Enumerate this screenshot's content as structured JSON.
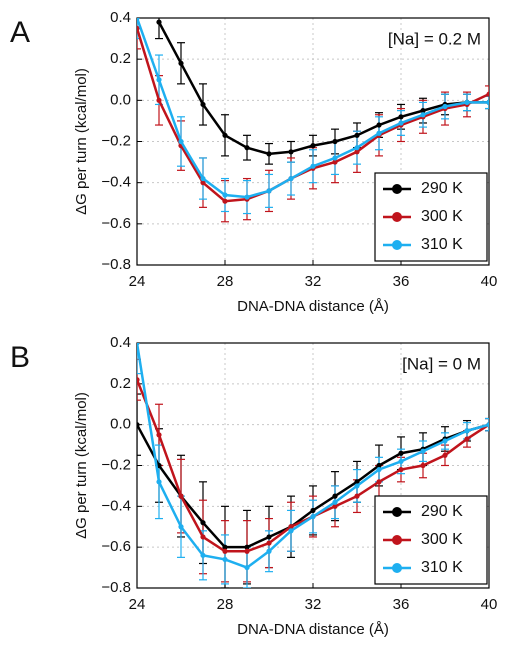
{
  "chart_data": [
    {
      "type": "line",
      "panel_label": "A",
      "annotation": "[Na] = 0.2 M",
      "xlabel": "DNA-DNA distance (Å)",
      "ylabel": "ΔG per turn (kcal/mol)",
      "x": [
        24,
        25,
        26,
        27,
        28,
        29,
        30,
        31,
        32,
        33,
        34,
        35,
        36,
        37,
        38,
        39,
        40
      ],
      "xlim": [
        24,
        40
      ],
      "xticks": [
        24,
        28,
        32,
        36,
        40
      ],
      "ylim": [
        -0.8,
        0.4
      ],
      "yticks": [
        0.4,
        0.2,
        {
          "value": 0,
          "label": "0.0"
        },
        {
          "value": -0.2,
          "label": "−0.2"
        },
        {
          "value": -0.4,
          "label": "−0.4"
        },
        {
          "value": -0.6,
          "label": "−0.6"
        },
        {
          "value": -0.8,
          "label": "−0.8"
        }
      ],
      "grid": true,
      "legend": "lower right",
      "series": [
        {
          "name": "290 K",
          "color": "#000000",
          "values": [
            null,
            0.38,
            0.18,
            -0.02,
            -0.17,
            -0.23,
            -0.26,
            -0.25,
            -0.22,
            -0.2,
            -0.17,
            -0.12,
            -0.08,
            -0.05,
            -0.02,
            -0.01,
            -0.01
          ],
          "errors": [
            null,
            0.08,
            0.1,
            0.1,
            0.1,
            0.06,
            0.05,
            0.05,
            0.05,
            0.06,
            0.06,
            0.06,
            0.06,
            0.06,
            0.05,
            0.04,
            0.03
          ]
        },
        {
          "name": "300 K",
          "color": "#c0141c",
          "values": [
            0.35,
            0.0,
            -0.22,
            -0.4,
            -0.49,
            -0.48,
            -0.44,
            -0.38,
            -0.33,
            -0.3,
            -0.25,
            -0.17,
            -0.12,
            -0.08,
            -0.04,
            -0.02,
            0.03
          ],
          "errors": [
            0.1,
            0.12,
            0.12,
            0.12,
            0.1,
            0.1,
            0.1,
            0.1,
            0.1,
            0.1,
            0.1,
            0.1,
            0.08,
            0.08,
            0.08,
            0.06,
            0.04
          ]
        },
        {
          "name": "310 K",
          "color": "#1eaff0",
          "values": [
            0.4,
            0.1,
            -0.2,
            -0.38,
            -0.46,
            -0.47,
            -0.44,
            -0.38,
            -0.32,
            -0.28,
            -0.23,
            -0.16,
            -0.11,
            -0.07,
            -0.03,
            -0.01,
            -0.01
          ],
          "errors": [
            0.1,
            0.12,
            0.12,
            0.1,
            0.08,
            0.08,
            0.08,
            0.08,
            0.08,
            0.08,
            0.08,
            0.08,
            0.06,
            0.06,
            0.06,
            0.04,
            0.03
          ]
        }
      ]
    },
    {
      "type": "line",
      "panel_label": "B",
      "annotation": "[Na] = 0 M",
      "xlabel": "DNA-DNA distance (Å)",
      "ylabel": "ΔG per turn (kcal/mol)",
      "x": [
        24,
        25,
        26,
        27,
        28,
        29,
        30,
        31,
        32,
        33,
        34,
        35,
        36,
        37,
        38,
        39,
        40
      ],
      "xlim": [
        24,
        40
      ],
      "xticks": [
        24,
        28,
        32,
        36,
        40
      ],
      "ylim": [
        -0.8,
        0.4
      ],
      "yticks": [
        0.4,
        0.2,
        {
          "value": 0,
          "label": "0.0"
        },
        {
          "value": -0.2,
          "label": "−0.2"
        },
        {
          "value": -0.4,
          "label": "−0.4"
        },
        {
          "value": -0.6,
          "label": "−0.6"
        },
        {
          "value": -0.8,
          "label": "−0.8"
        }
      ],
      "grid": true,
      "legend": "lower right",
      "series": [
        {
          "name": "290 K",
          "color": "#000000",
          "values": [
            0.0,
            -0.2,
            -0.35,
            -0.48,
            -0.6,
            -0.6,
            -0.55,
            -0.5,
            -0.42,
            -0.35,
            -0.28,
            -0.2,
            -0.14,
            -0.12,
            -0.07,
            -0.03,
            0.0
          ],
          "errors": [
            0.15,
            0.18,
            0.2,
            0.2,
            0.2,
            0.18,
            0.15,
            0.15,
            0.12,
            0.12,
            0.1,
            0.1,
            0.08,
            0.08,
            0.06,
            0.05,
            0.03
          ]
        },
        {
          "name": "300 K",
          "color": "#c0141c",
          "values": [
            0.22,
            -0.05,
            -0.35,
            -0.55,
            -0.62,
            -0.62,
            -0.58,
            -0.5,
            -0.45,
            -0.4,
            -0.35,
            -0.28,
            -0.22,
            -0.2,
            -0.15,
            -0.07,
            0.0
          ],
          "errors": [
            0.1,
            0.15,
            0.18,
            0.18,
            0.15,
            0.15,
            0.12,
            0.12,
            0.1,
            0.1,
            0.08,
            0.08,
            0.06,
            0.06,
            0.05,
            0.04,
            0.03
          ]
        },
        {
          "name": "310 K",
          "color": "#1eaff0",
          "values": [
            0.4,
            -0.28,
            -0.5,
            -0.64,
            -0.66,
            -0.7,
            -0.62,
            -0.52,
            -0.45,
            -0.38,
            -0.3,
            -0.22,
            -0.18,
            -0.13,
            -0.08,
            -0.03,
            0.0
          ],
          "errors": [
            0.15,
            0.18,
            0.15,
            0.12,
            0.12,
            0.1,
            0.1,
            0.1,
            0.08,
            0.08,
            0.08,
            0.06,
            0.06,
            0.05,
            0.04,
            0.04,
            0.03
          ]
        }
      ]
    }
  ]
}
